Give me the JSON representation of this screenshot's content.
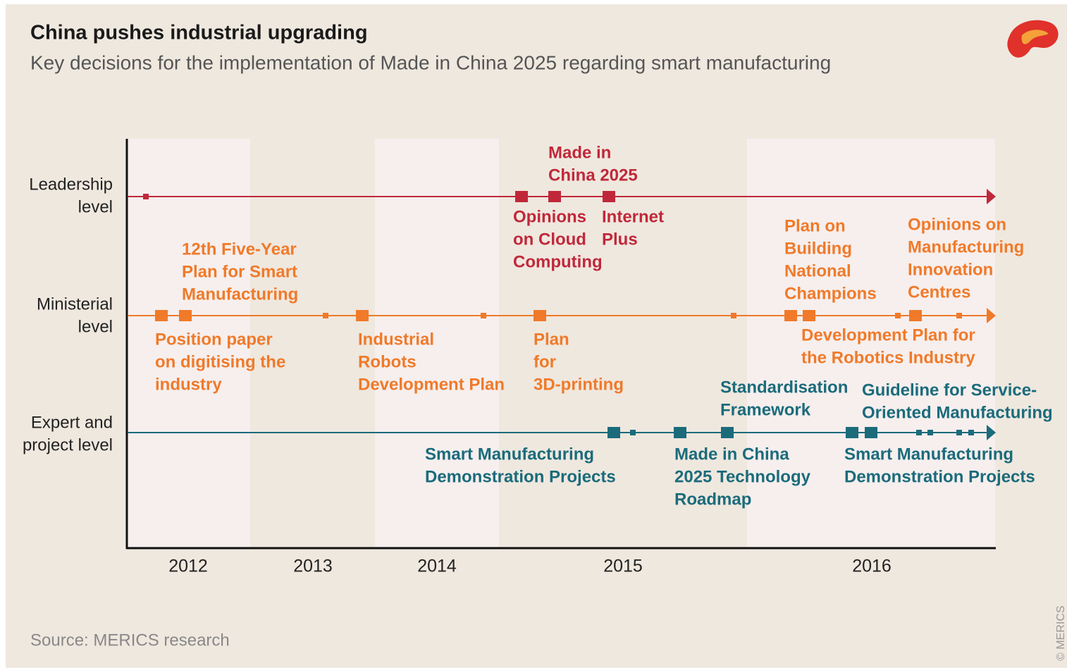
{
  "header": {
    "title": "China pushes industrial upgrading",
    "subtitle": "Key decisions for the implementation of Made in China 2025 regarding smart manufacturing"
  },
  "levels": [
    {
      "lines": [
        "Leadership",
        "level"
      ]
    },
    {
      "lines": [
        "Ministerial",
        "level"
      ]
    },
    {
      "lines": [
        "Expert and",
        "project level"
      ]
    }
  ],
  "years": [
    "2012",
    "2013",
    "2014",
    "2015",
    "2016"
  ],
  "events": [
    {
      "level": "leadership",
      "lines": [
        "Made in",
        "China 2025"
      ]
    },
    {
      "level": "leadership",
      "lines": [
        "Opinions",
        "on Cloud",
        "Computing"
      ]
    },
    {
      "level": "leadership",
      "lines": [
        "Internet",
        "Plus"
      ]
    },
    {
      "level": "ministerial",
      "lines": [
        "12th Five-Year",
        "Plan for Smart",
        "Manufacturing"
      ]
    },
    {
      "level": "ministerial",
      "lines": [
        "Position paper",
        "on digitising the",
        "industry"
      ]
    },
    {
      "level": "ministerial",
      "lines": [
        "Industrial",
        "Robots",
        "Development Plan"
      ]
    },
    {
      "level": "ministerial",
      "lines": [
        "Plan",
        "for",
        "3D-printing"
      ]
    },
    {
      "level": "ministerial",
      "lines": [
        "Plan on",
        "Building",
        "National",
        "Champions"
      ]
    },
    {
      "level": "ministerial",
      "lines": [
        "Opinions on",
        "Manufacturing",
        "Innovation",
        "Centres"
      ]
    },
    {
      "level": "ministerial",
      "lines": [
        "Development Plan for",
        "the Robotics Industry"
      ]
    },
    {
      "level": "expert",
      "lines": [
        "Standardisation",
        "Framework"
      ]
    },
    {
      "level": "expert",
      "lines": [
        "Guideline for Service-",
        "Oriented Manufacturing"
      ]
    },
    {
      "level": "expert",
      "lines": [
        "Smart Manufacturing",
        "Demonstration Projects"
      ]
    },
    {
      "level": "expert",
      "lines": [
        "Made in China",
        "2025 Technology",
        "Roadmap"
      ]
    },
    {
      "level": "expert",
      "lines": [
        "Smart Manufacturing",
        "Demonstration Projects"
      ]
    }
  ],
  "source": "Source: MERICS research",
  "copyright": "© MERICS"
}
